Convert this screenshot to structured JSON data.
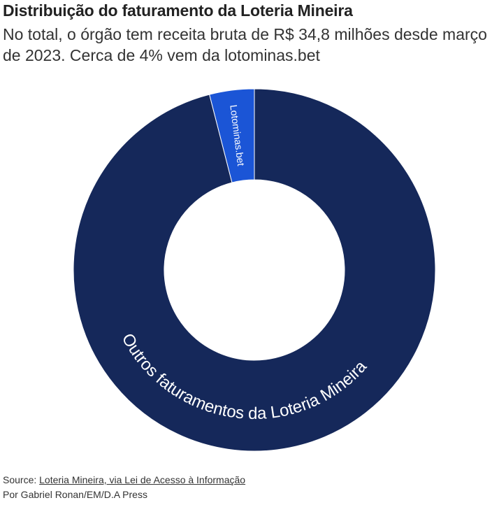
{
  "header": {
    "title": "Distribuição do faturamento da Loteria Mineira",
    "subtitle": "No total, o órgão tem receita bruta de R$ 34,8 milhões desde março de 2023. Cerca de 4% vem da lotominas.bet"
  },
  "chart_data": {
    "type": "pie",
    "variant": "donut",
    "title": "Distribuição do faturamento da Loteria Mineira",
    "series": [
      {
        "label": "Lotominas.bet",
        "value": 4,
        "color": "#1b55d6",
        "label_color": "#ffffff"
      },
      {
        "label": "Outros faturamentos da Loteria Mineira",
        "value": 96,
        "color": "#15285a",
        "label_color": "#ffffff"
      }
    ],
    "start_angle": "12 o'clock, counterclockwise",
    "legend": "none (labels on slices)"
  },
  "footer": {
    "source_prefix": "Source:",
    "source_link": "Loteria Mineira, via Lei de Acesso à Informação",
    "byline": "Por Gabriel Ronan/EM/D.A Press"
  }
}
